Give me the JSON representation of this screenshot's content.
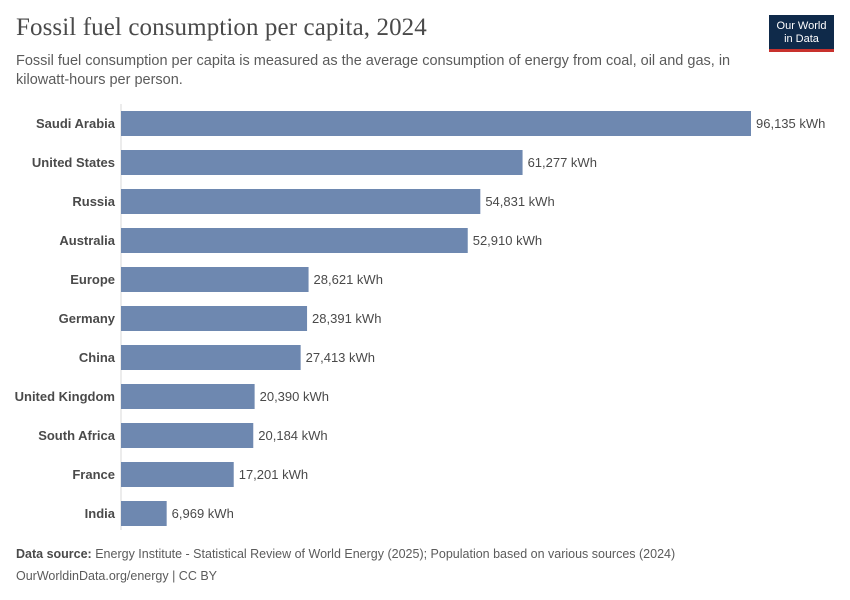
{
  "header": {
    "title": "Fossil fuel consumption per capita, 2024",
    "subtitle": "Fossil fuel consumption per capita is measured as the average consumption of energy from coal, oil and gas, in kilowatt-hours per person.",
    "logo_line1": "Our World",
    "logo_line2": "in Data"
  },
  "footer": {
    "source_label": "Data source:",
    "source_text": "Energy Institute - Statistical Review of World Energy (2025); Population based on various sources (2024)",
    "url_text": "OurWorldinData.org/energy | CC BY"
  },
  "colors": {
    "bar": "#6e88b0",
    "axis": "#d9d9d9",
    "logo_bg": "#0f2a4a",
    "logo_accent": "#c8312d"
  },
  "chart_data": {
    "type": "bar",
    "orientation": "horizontal",
    "categories": [
      "Saudi Arabia",
      "United States",
      "Russia",
      "Australia",
      "Europe",
      "Germany",
      "China",
      "United Kingdom",
      "South Africa",
      "France",
      "India"
    ],
    "values": [
      96135,
      61277,
      54831,
      52910,
      28621,
      28391,
      27413,
      20390,
      20184,
      17201,
      6969
    ],
    "value_labels": [
      "96,135 kWh",
      "61,277 kWh",
      "54,831 kWh",
      "52,910 kWh",
      "28,621 kWh",
      "28,391 kWh",
      "27,413 kWh",
      "20,390 kWh",
      "20,184 kWh",
      "17,201 kWh",
      "6,969 kWh"
    ],
    "unit": "kWh",
    "xlim": [
      0,
      96135
    ],
    "grid": false,
    "legend": "none"
  }
}
